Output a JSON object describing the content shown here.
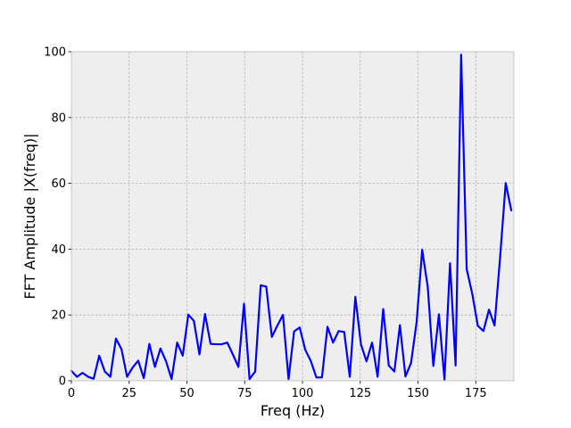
{
  "chart_data": {
    "type": "line",
    "title": "",
    "xlabel": "Freq (Hz)",
    "ylabel": "FFT Amplitude |X(freq)|",
    "xlim": [
      0,
      191.5
    ],
    "ylim": [
      0,
      100
    ],
    "xticks": [
      0,
      25,
      50,
      75,
      100,
      125,
      150,
      175
    ],
    "yticks": [
      0,
      20,
      40,
      60,
      80,
      100
    ],
    "grid": true,
    "series": [
      {
        "color": "#0000ff",
        "x": [
          0,
          2.41,
          4.82,
          7.23,
          9.64,
          12.05,
          14.46,
          16.87,
          19.28,
          21.69,
          24.1,
          26.51,
          28.92,
          31.33,
          33.74,
          36.14,
          38.55,
          40.96,
          43.37,
          45.78,
          48.19,
          50.6,
          53.01,
          55.42,
          57.83,
          60.24,
          62.65,
          65.06,
          67.47,
          69.88,
          72.29,
          74.7,
          77.11,
          79.52,
          81.93,
          84.34,
          86.75,
          89.16,
          91.57,
          93.98,
          96.39,
          98.8,
          101.2,
          103.61,
          106.02,
          108.43,
          110.84,
          113.25,
          115.66,
          118.07,
          120.48,
          122.89,
          125.3,
          127.71,
          130.12,
          132.53,
          134.94,
          137.35,
          139.76,
          142.17,
          144.58,
          146.99,
          149.4,
          151.81,
          154.22,
          156.63,
          159.04,
          161.45,
          163.86,
          166.27,
          168.67,
          171.08,
          173.49,
          175.9,
          178.31,
          180.72,
          183.13,
          185.54,
          187.95,
          190.36
        ],
        "y": [
          3,
          1.2,
          2.4,
          1.2,
          0.6,
          7.6,
          2.8,
          1.2,
          12.8,
          9.6,
          1.2,
          4,
          6.1,
          0.8,
          11.2,
          4.2,
          9.8,
          5.9,
          0.5,
          11.6,
          7.6,
          20.1,
          18.2,
          8,
          20.3,
          11.2,
          11.1,
          11.1,
          11.6,
          8,
          4.2,
          23.4,
          0.5,
          2.8,
          29,
          28.6,
          13.3,
          16.8,
          20,
          0.5,
          15,
          16.2,
          9.4,
          6,
          1,
          1,
          16.4,
          11.6,
          15.1,
          14.8,
          1.2,
          25.5,
          11.1,
          5.9,
          11.6,
          1.2,
          21.8,
          4.6,
          2.8,
          16.9,
          1.3,
          5.4,
          17.8,
          39.8,
          28.5,
          4.5,
          20.2,
          0.4,
          35.7,
          4.6,
          99.1,
          33.9,
          26.4,
          16.7,
          15.1,
          21.6,
          16.8,
          37.6,
          60.1,
          51.8
        ]
      }
    ]
  }
}
